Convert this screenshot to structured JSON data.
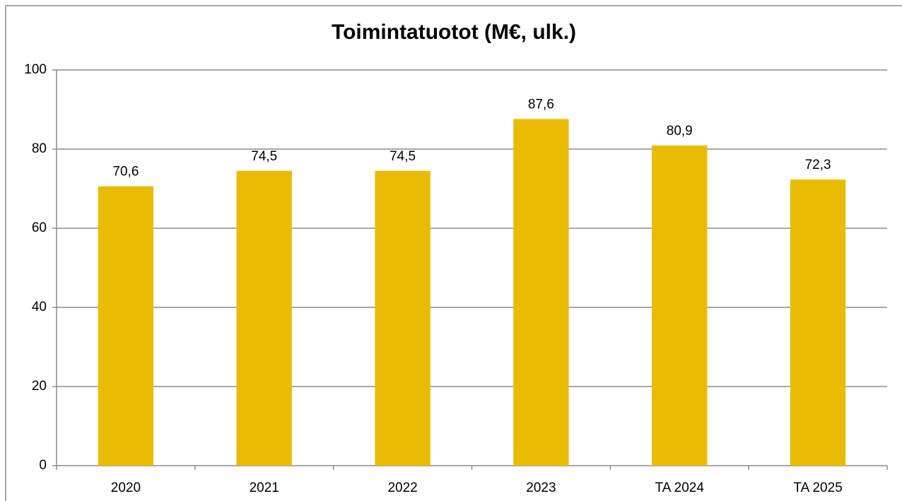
{
  "chart_data": {
    "type": "bar",
    "title": "Toimintatuotot  (M€, ulk.)",
    "categories": [
      "2020",
      "2021",
      "2022",
      "2023",
      "TA 2024",
      "TA 2025"
    ],
    "values": [
      70.6,
      74.5,
      74.5,
      87.6,
      80.9,
      72.3
    ],
    "value_labels": [
      "70,6",
      "74,5",
      "74,5",
      "87,6",
      "80,9",
      "72,3"
    ],
    "color": "#e8bc00",
    "ylim": [
      0,
      100
    ],
    "yticks": [
      0,
      20,
      40,
      60,
      80,
      100
    ],
    "grid": true
  }
}
